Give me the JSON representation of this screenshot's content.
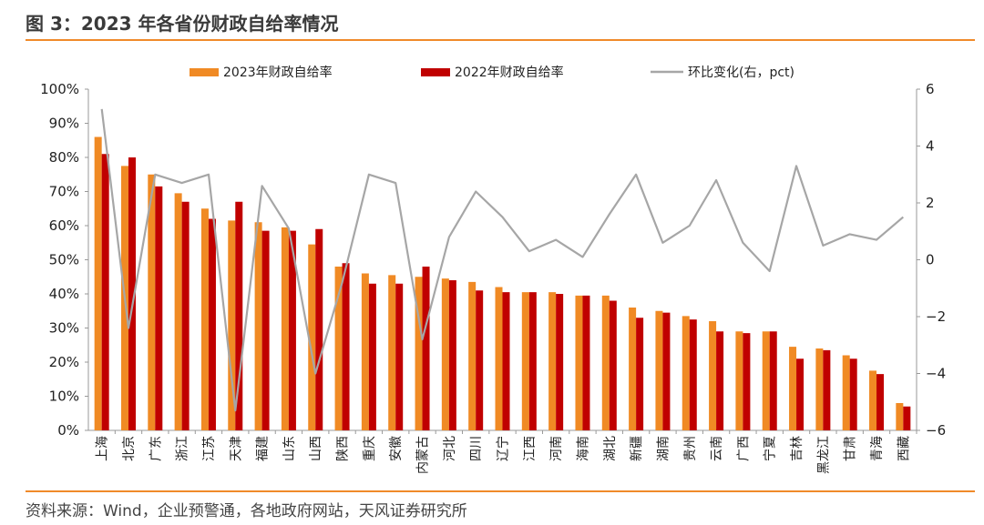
{
  "header": {
    "title": "图 3：2023 年各省份财政自给率情况"
  },
  "footer": {
    "source": "资料来源：Wind，企业预警通，各地政府网站，天风证券研究所"
  },
  "colors": {
    "s2023": "#f08a24",
    "s2022": "#c00000",
    "line": "#a6a6a6",
    "accent": "#f08a2a"
  },
  "chart_data": {
    "type": "bar",
    "categories": [
      "上海",
      "北京",
      "广东",
      "浙江",
      "江苏",
      "天津",
      "福建",
      "山东",
      "山西",
      "陕西",
      "重庆",
      "安徽",
      "内蒙古",
      "河北",
      "四川",
      "辽宁",
      "江西",
      "河南",
      "海南",
      "湖北",
      "新疆",
      "湖南",
      "贵州",
      "云南",
      "广西",
      "宁夏",
      "吉林",
      "黑龙江",
      "甘肃",
      "青海",
      "西藏"
    ],
    "series": [
      {
        "name": "2023年财政自给率",
        "type": "bar",
        "values": [
          86,
          77.5,
          75,
          69.5,
          65,
          61.5,
          61,
          59.5,
          54.5,
          48,
          46,
          45.5,
          45,
          44.5,
          43.5,
          42,
          40.5,
          40.5,
          39.5,
          39.5,
          36,
          35,
          33.5,
          32,
          29,
          29,
          24.5,
          24,
          22,
          17.5,
          8
        ]
      },
      {
        "name": "2022年财政自给率",
        "type": "bar",
        "values": [
          81,
          80,
          71.5,
          67,
          62,
          67,
          58.5,
          58.5,
          59,
          49,
          43,
          43,
          48,
          44,
          41,
          40.5,
          40.5,
          40,
          39.5,
          38,
          33,
          34.5,
          32.5,
          29,
          28.5,
          29,
          21,
          23.5,
          21,
          16.5,
          7
        ]
      },
      {
        "name": "环比变化(右，pct)",
        "type": "line",
        "axis": "right",
        "values": [
          5.3,
          -2.4,
          3.0,
          2.7,
          3.0,
          -5.3,
          2.6,
          1.1,
          -4.0,
          -0.8,
          3.0,
          2.7,
          -2.8,
          0.8,
          2.4,
          1.5,
          0.3,
          0.7,
          0.1,
          1.6,
          3.0,
          0.6,
          1.2,
          2.8,
          0.6,
          -0.4,
          3.3,
          0.5,
          0.9,
          0.7,
          1.5
        ]
      }
    ],
    "yaxis_left": {
      "min": 0,
      "max": 100,
      "step": 10,
      "ticks": [
        "0%",
        "10%",
        "20%",
        "30%",
        "40%",
        "50%",
        "60%",
        "70%",
        "80%",
        "90%",
        "100%"
      ]
    },
    "yaxis_right": {
      "min": -6,
      "max": 6,
      "step": 2,
      "ticks": [
        "−6",
        "−4",
        "−2",
        "0",
        "2",
        "4",
        "6"
      ]
    },
    "grid": false,
    "legend_position": "top"
  }
}
